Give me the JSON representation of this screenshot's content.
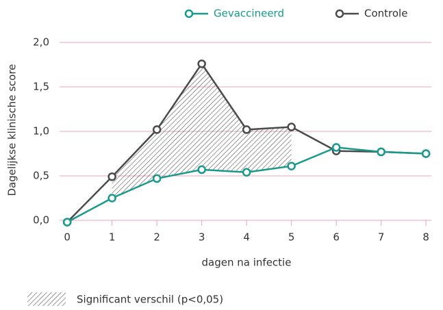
{
  "chart_data": {
    "type": "line",
    "x": [
      0,
      1,
      2,
      3,
      4,
      5,
      6,
      7,
      8
    ],
    "series": [
      {
        "name": "Gevaccineerd",
        "color": "#17998b",
        "values": [
          -0.02,
          0.25,
          0.47,
          0.57,
          0.54,
          0.61,
          0.82,
          0.77,
          0.75
        ]
      },
      {
        "name": "Controle",
        "color": "#4a4a4a",
        "values": [
          -0.02,
          0.49,
          1.02,
          1.76,
          1.02,
          1.05,
          0.78,
          0.77,
          0.75
        ]
      }
    ],
    "xlabel": "dagen na infectie",
    "ylabel": "Dagelijkse klinische score",
    "xlim": [
      -0.17,
      8.12
    ],
    "ylim": [
      0,
      2
    ],
    "xticks": [
      0,
      1,
      2,
      3,
      4,
      5,
      6,
      7,
      8
    ],
    "yticks": [
      {
        "value": 0,
        "label": "0,0"
      },
      {
        "value": 0.5,
        "label": "0,5"
      },
      {
        "value": 1,
        "label": "1,0"
      },
      {
        "value": 1.5,
        "label": "1,5"
      },
      {
        "value": 2,
        "label": "2,0"
      }
    ],
    "grid": true,
    "shaded_range": [
      1,
      5
    ],
    "annotation": "Significant verschil (p<0,05)"
  }
}
